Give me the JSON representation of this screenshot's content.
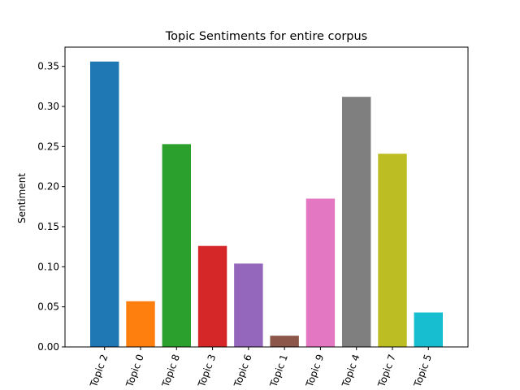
{
  "chart_data": {
    "type": "bar",
    "title": "Topic Sentiments for entire corpus",
    "xlabel": "",
    "ylabel": "Sentiment",
    "categories": [
      "Topic 2",
      "Topic 0",
      "Topic 8",
      "Topic 3",
      "Topic 6",
      "Topic 1",
      "Topic 9",
      "Topic 4",
      "Topic 7",
      "Topic 5"
    ],
    "values": [
      0.356,
      0.057,
      0.253,
      0.126,
      0.104,
      0.014,
      0.185,
      0.312,
      0.241,
      0.043
    ],
    "colors": [
      "#1f77b4",
      "#ff7f0e",
      "#2ca02c",
      "#d62728",
      "#9467bd",
      "#8c564b",
      "#e377c2",
      "#7f7f7f",
      "#bcbd22",
      "#17becf"
    ],
    "ylim": [
      0,
      0.374
    ],
    "yticks": [
      "0.00",
      "0.05",
      "0.10",
      "0.15",
      "0.20",
      "0.25",
      "0.30",
      "0.35"
    ],
    "xtick_rotation": "70 degrees counter-clockwise",
    "grid": false,
    "legend": "none"
  }
}
